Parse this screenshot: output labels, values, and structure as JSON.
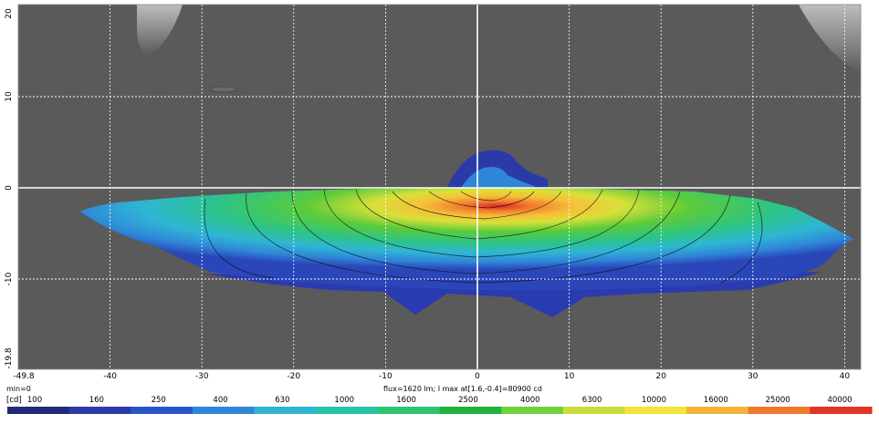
{
  "chart_data": {
    "type": "heatmap",
    "title": "",
    "x_ticks": [
      -49.8,
      -40,
      -30,
      -20,
      -10,
      0,
      10,
      20,
      30,
      40
    ],
    "y_ticks": [
      20,
      10,
      0,
      -10,
      -19.8
    ],
    "xlim": [
      -49.8,
      43
    ],
    "ylim": [
      -19.8,
      20
    ],
    "grid": true,
    "min_label": "min=0",
    "unit_label": "[cd]",
    "flux_label": "flux=1620 lm; I max at[1.6,-0.4]=80900 cd",
    "legend_values": [
      "100",
      "160",
      "250",
      "400",
      "630",
      "1000",
      "1600",
      "2500",
      "4000",
      "6300",
      "10000",
      "16000",
      "25000",
      "40000"
    ],
    "legend_colors": [
      "#22287a",
      "#2c3aa8",
      "#2a55c8",
      "#2f86d8",
      "#2fb4d4",
      "#28c2a8",
      "#2cc470",
      "#1fb23c",
      "#6fd23a",
      "#c8dc3a",
      "#f2e43a",
      "#f6b238",
      "#f07a2e",
      "#e03426"
    ],
    "max_intensity_cd": 80900,
    "max_at": [
      1.6,
      -0.4
    ],
    "flux_lm": 1620,
    "colors": {
      "background": "#5a5a5a",
      "grid": "#ffffff"
    }
  }
}
